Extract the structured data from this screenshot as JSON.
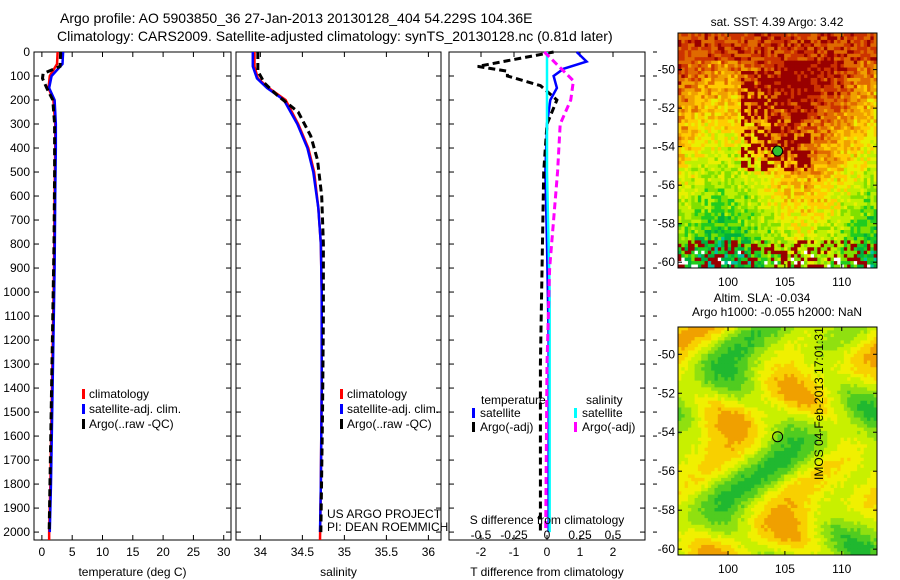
{
  "title_line1": "Argo profile: AO 5903850_36 27-Jan-2013 20130128_404 54.229S 104.36E",
  "title_line2": "Climatology: CARS2009. Satellite-adjusted climatology: synTS_20130128.nc (0.81d later)",
  "side_text": "IMOS 04-Feb-2013 17:01:31",
  "credit1": "US ARGO PROJECT",
  "credit2": "PI: DEAN ROEMMICH",
  "colors": {
    "clim": "#ff0000",
    "sat": "#0000ff",
    "argo": "#000000",
    "sal_sat": "#00ffff",
    "sal_argo": "#ff00ff"
  },
  "chart_data": [
    {
      "type": "line",
      "id": "temp",
      "xlabel": "temperature (deg C)",
      "xlim": [
        -1.3,
        31.2
      ],
      "xticks": [
        0,
        5,
        10,
        15,
        20,
        25,
        30
      ],
      "ylim": [
        0,
        2033
      ],
      "yticks": [
        0,
        100,
        200,
        300,
        400,
        500,
        600,
        700,
        800,
        900,
        1000,
        1100,
        1200,
        1300,
        1400,
        1500,
        1600,
        1700,
        1800,
        1900,
        2000
      ],
      "legend": [
        "climatology",
        "satellite-adj. clim.",
        "Argo(..raw -QC)"
      ],
      "series": [
        {
          "name": "climatology",
          "color": "#ff0000",
          "dash": false,
          "points": [
            [
              2.6,
              0
            ],
            [
              2.5,
              50
            ],
            [
              1.3,
              100
            ],
            [
              1.1,
              150
            ],
            [
              1.9,
              200
            ],
            [
              2.2,
              300
            ],
            [
              2.2,
              400
            ],
            [
              2.1,
              600
            ],
            [
              2.0,
              900
            ],
            [
              1.8,
              1200
            ],
            [
              1.6,
              1500
            ],
            [
              1.4,
              1800
            ],
            [
              1.2,
              2000
            ],
            [
              1.2,
              2033
            ]
          ]
        },
        {
          "name": "satellite-adj. clim.",
          "color": "#0000ff",
          "dash": false,
          "points": [
            [
              3.5,
              0
            ],
            [
              3.4,
              50
            ],
            [
              1.6,
              100
            ],
            [
              1.2,
              150
            ],
            [
              2.1,
              200
            ],
            [
              2.3,
              300
            ],
            [
              2.3,
              400
            ],
            [
              2.2,
              600
            ],
            [
              2.1,
              900
            ],
            [
              1.9,
              1200
            ],
            [
              1.7,
              1500
            ],
            [
              1.5,
              1800
            ],
            [
              1.3,
              2000
            ]
          ]
        },
        {
          "name": "Argo(..raw -QC)",
          "color": "#000000",
          "dash": true,
          "points": [
            [
              3.1,
              0
            ],
            [
              3.0,
              60
            ],
            [
              0.2,
              90
            ],
            [
              0.1,
              110
            ],
            [
              0.8,
              150
            ],
            [
              1.8,
              200
            ],
            [
              2.1,
              300
            ],
            [
              2.1,
              500
            ],
            [
              2.0,
              800
            ],
            [
              1.8,
              1100
            ],
            [
              1.6,
              1400
            ],
            [
              1.4,
              1700
            ],
            [
              1.2,
              2000
            ]
          ]
        }
      ]
    },
    {
      "type": "line",
      "id": "sal",
      "xlabel": "salinity",
      "xlim": [
        33.71,
        36.15
      ],
      "xticks": [
        34,
        34.5,
        35,
        35.5,
        36
      ],
      "legend": [
        "climatology",
        "satellite-adj. clim.",
        "Argo(..raw -QC)"
      ],
      "series": [
        {
          "name": "climatology",
          "color": "#ff0000",
          "dash": false,
          "points": [
            [
              33.93,
              0
            ],
            [
              33.93,
              60
            ],
            [
              33.97,
              110
            ],
            [
              34.1,
              150
            ],
            [
              34.3,
              200
            ],
            [
              34.45,
              300
            ],
            [
              34.57,
              400
            ],
            [
              34.64,
              500
            ],
            [
              34.69,
              650
            ],
            [
              34.72,
              800
            ],
            [
              34.73,
              1000
            ],
            [
              34.73,
              1400
            ],
            [
              34.72,
              1800
            ],
            [
              34.71,
              2033
            ]
          ]
        },
        {
          "name": "satellite-adj. clim.",
          "color": "#0000ff",
          "dash": false,
          "points": [
            [
              33.91,
              0
            ],
            [
              33.91,
              60
            ],
            [
              33.96,
              110
            ],
            [
              34.08,
              150
            ],
            [
              34.28,
              200
            ],
            [
              34.44,
              300
            ],
            [
              34.56,
              400
            ],
            [
              34.63,
              500
            ],
            [
              34.69,
              650
            ],
            [
              34.72,
              800
            ],
            [
              34.73,
              1000
            ],
            [
              34.73,
              1400
            ],
            [
              34.72,
              1800
            ],
            [
              34.71,
              2000
            ]
          ]
        },
        {
          "name": "Argo(..raw -QC)",
          "color": "#000000",
          "dash": true,
          "points": [
            [
              33.97,
              0
            ],
            [
              33.97,
              80
            ],
            [
              34.05,
              130
            ],
            [
              34.2,
              180
            ],
            [
              34.45,
              250
            ],
            [
              34.6,
              350
            ],
            [
              34.68,
              450
            ],
            [
              34.73,
              600
            ],
            [
              34.75,
              800
            ],
            [
              34.75,
              1100
            ],
            [
              34.74,
              1500
            ],
            [
              34.72,
              2000
            ]
          ]
        }
      ]
    },
    {
      "type": "line",
      "id": "diff",
      "xlabel": "T difference from climatology",
      "xlabel2": "S difference from climatology",
      "xlim": [
        -2.97,
        2.97
      ],
      "xticks": [
        -2,
        -1,
        0,
        1,
        2
      ],
      "xticks2": [
        -0.5,
        -0.25,
        0,
        0.25,
        0.5
      ],
      "xtick2_labels": [
        "-0.5",
        "-0.25",
        "0",
        "0.25",
        "0.5"
      ],
      "legend_t_title": "temperature",
      "legend_s_title": "salinity",
      "legend": [
        "satellite",
        "Argo(-adj)",
        "satellite",
        "Argo(-adj)"
      ],
      "series": [
        {
          "name": "T satellite",
          "color": "#0000ff",
          "dash": false,
          "points": [
            [
              0.9,
              0
            ],
            [
              1.2,
              40
            ],
            [
              0.5,
              70
            ],
            [
              0.2,
              100
            ],
            [
              0.3,
              150
            ],
            [
              0.1,
              200
            ],
            [
              0.0,
              300
            ],
            [
              -0.05,
              500
            ],
            [
              0.0,
              800
            ],
            [
              0.05,
              1200
            ],
            [
              0.05,
              2000
            ]
          ]
        },
        {
          "name": "T Argo(-adj)",
          "color": "#000000",
          "dash": true,
          "points": [
            [
              0.2,
              0
            ],
            [
              -2.1,
              60
            ],
            [
              -1.2,
              80
            ],
            [
              -1.2,
              100
            ],
            [
              -0.2,
              140
            ],
            [
              0.3,
              200
            ],
            [
              0.0,
              300
            ],
            [
              -0.1,
              500
            ],
            [
              -0.15,
              900
            ],
            [
              -0.2,
              1300
            ],
            [
              -0.2,
              2000
            ]
          ]
        },
        {
          "name": "S satellite",
          "color": "#00ffff",
          "dash": false,
          "points": [
            [
              0.0,
              0
            ],
            [
              0.0,
              500
            ],
            [
              0.02,
              1000
            ],
            [
              0.02,
              2000
            ]
          ]
        },
        {
          "name": "S Argo(-adj)",
          "color": "#ff00ff",
          "dash": true,
          "points": [
            [
              -0.02,
              0
            ],
            [
              0.2,
              120
            ],
            [
              0.18,
              200
            ],
            [
              0.1,
              300
            ],
            [
              0.08,
              500
            ],
            [
              0.05,
              700
            ],
            [
              0.02,
              900
            ],
            [
              0.0,
              1300
            ],
            [
              -0.01,
              2000
            ]
          ]
        }
      ]
    },
    {
      "type": "heatmap",
      "id": "sst",
      "title": "sat. SST: 4.39 Argo: 3.42",
      "xlim": [
        95.6,
        113.1
      ],
      "ylim": [
        -60.3,
        -48.1
      ],
      "xticks": [
        100,
        105,
        110
      ],
      "yticks": [
        -50,
        -52,
        -54,
        -56,
        -58,
        -60
      ],
      "marker": [
        104.36,
        -54.229
      ]
    },
    {
      "type": "heatmap",
      "id": "sla",
      "title": "Altim. SLA: -0.034",
      "title2": "Argo h1000: -0.055 h2000: NaN",
      "xlim": [
        95.6,
        113.1
      ],
      "ylim": [
        -60.3,
        -48.6
      ],
      "xticks": [
        100,
        105,
        110
      ],
      "yticks": [
        -50,
        -52,
        -54,
        -56,
        -58,
        -60
      ],
      "marker": [
        104.36,
        -54.229
      ]
    }
  ]
}
